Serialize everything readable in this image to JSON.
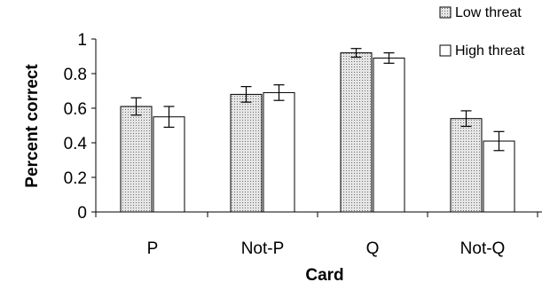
{
  "chart_data": {
    "type": "bar",
    "categories": [
      "P",
      "Not-P",
      "Q",
      "Not-Q"
    ],
    "series": [
      {
        "name": "Low threat",
        "values": [
          0.61,
          0.68,
          0.92,
          0.54
        ],
        "error": [
          0.05,
          0.045,
          0.025,
          0.045
        ],
        "color": "#d3d3d3",
        "pattern": "dotted"
      },
      {
        "name": "High threat",
        "values": [
          0.55,
          0.69,
          0.89,
          0.41
        ],
        "error": [
          0.06,
          0.045,
          0.03,
          0.055
        ],
        "color": "#ffffff",
        "pattern": "solid"
      }
    ],
    "xlabel": "Card",
    "ylabel": "Percent correct",
    "ylim": [
      0,
      1
    ],
    "yticks": [
      "0",
      "0.2",
      "0.4",
      "0.6",
      "0.8",
      "1"
    ],
    "grid": false,
    "legend_position": "top-right"
  }
}
